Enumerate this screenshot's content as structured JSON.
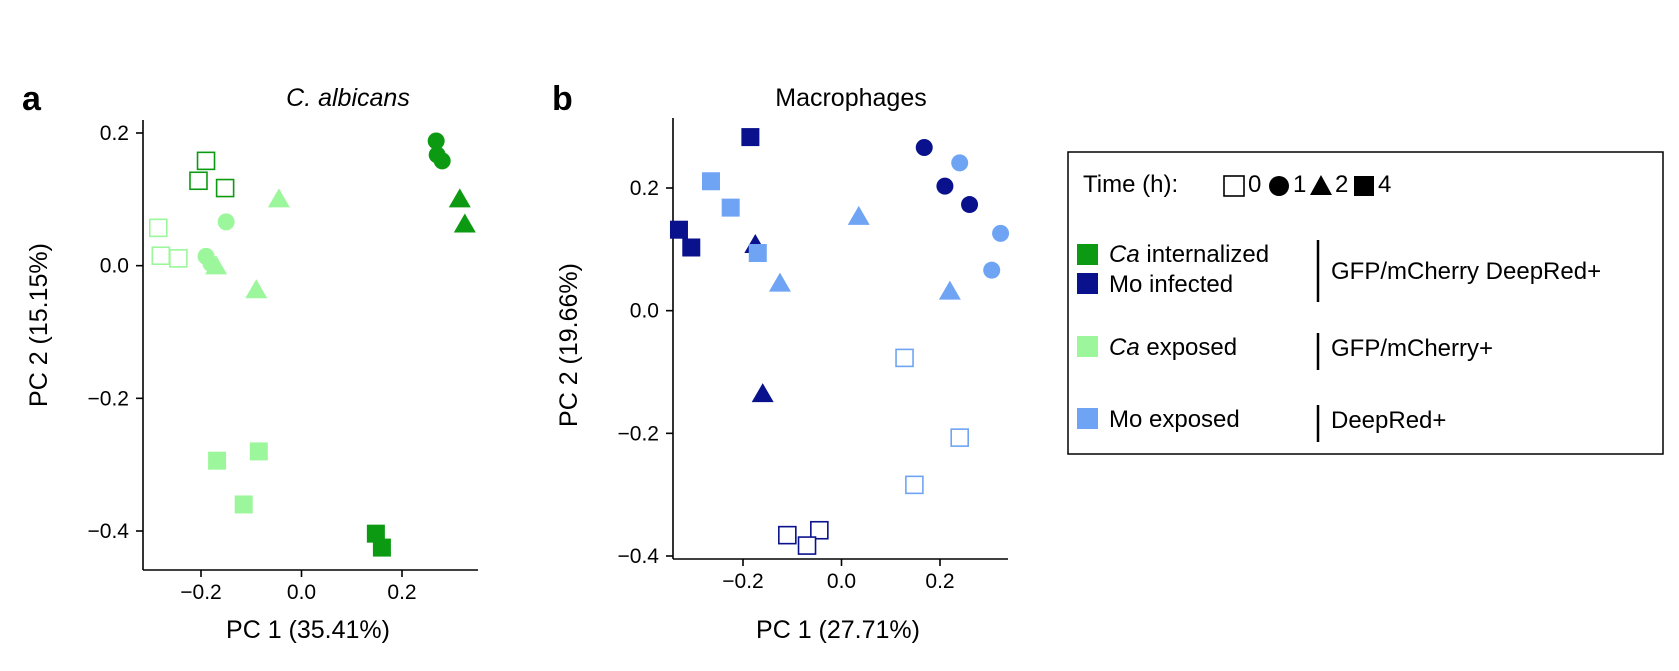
{
  "colors": {
    "ca_internalized": "#0c9a12",
    "mo_infected": "#0a118c",
    "ca_exposed": "#9cf79c",
    "mo_exposed": "#6fa4f5"
  },
  "chart_data": [
    {
      "type": "scatter",
      "panel": "a",
      "title": "C. albicans",
      "xlabel": "PC 1 (35.41%)",
      "ylabel": "PC 2 (15.15%)",
      "xlim": [
        -0.31,
        0.35
      ],
      "ylim": [
        -0.455,
        0.22
      ],
      "xticks": [
        -0.2,
        0.0,
        0.2
      ],
      "xtick_labels": [
        "−0.2",
        "0.0",
        "0.2"
      ],
      "yticks": [
        0.2,
        0.0,
        -0.2,
        -0.4
      ],
      "ytick_labels": [
        "0.2",
        "0.0",
        "−0.2",
        "−0.4"
      ],
      "grid": false,
      "points": [
        {
          "x": -0.19,
          "y": 0.158,
          "group": "ca_internalized",
          "time": 0
        },
        {
          "x": -0.205,
          "y": 0.128,
          "group": "ca_internalized",
          "time": 0
        },
        {
          "x": -0.152,
          "y": 0.117,
          "group": "ca_internalized",
          "time": 0
        },
        {
          "x": -0.285,
          "y": 0.057,
          "group": "ca_exposed",
          "time": 0
        },
        {
          "x": -0.28,
          "y": 0.015,
          "group": "ca_exposed",
          "time": 0
        },
        {
          "x": -0.245,
          "y": 0.011,
          "group": "ca_exposed",
          "time": 0
        },
        {
          "x": 0.268,
          "y": 0.188,
          "group": "ca_internalized",
          "time": 1
        },
        {
          "x": 0.27,
          "y": 0.167,
          "group": "ca_internalized",
          "time": 1
        },
        {
          "x": 0.28,
          "y": 0.158,
          "group": "ca_internalized",
          "time": 1
        },
        {
          "x": -0.15,
          "y": 0.066,
          "group": "ca_exposed",
          "time": 1
        },
        {
          "x": -0.19,
          "y": 0.014,
          "group": "ca_exposed",
          "time": 1
        },
        {
          "x": -0.18,
          "y": 0.003,
          "group": "ca_exposed",
          "time": 1
        },
        {
          "x": 0.315,
          "y": 0.1,
          "group": "ca_internalized",
          "time": 2
        },
        {
          "x": 0.325,
          "y": 0.062,
          "group": "ca_internalized",
          "time": 2
        },
        {
          "x": -0.045,
          "y": 0.1,
          "group": "ca_exposed",
          "time": 2
        },
        {
          "x": -0.17,
          "y": -0.001,
          "group": "ca_exposed",
          "time": 2
        },
        {
          "x": -0.09,
          "y": -0.037,
          "group": "ca_exposed",
          "time": 2
        },
        {
          "x": 0.148,
          "y": -0.404,
          "group": "ca_internalized",
          "time": 4
        },
        {
          "x": 0.16,
          "y": -0.425,
          "group": "ca_internalized",
          "time": 4
        },
        {
          "x": -0.168,
          "y": -0.294,
          "group": "ca_exposed",
          "time": 4
        },
        {
          "x": -0.085,
          "y": -0.28,
          "group": "ca_exposed",
          "time": 4
        },
        {
          "x": -0.115,
          "y": -0.36,
          "group": "ca_exposed",
          "time": 4
        }
      ]
    },
    {
      "type": "scatter",
      "panel": "b",
      "title": "Macrophages",
      "xlabel": "PC 1 (27.71%)",
      "ylabel": "PC 2 (19.66%)",
      "xlim": [
        -0.36,
        0.35
      ],
      "ylim": [
        -0.41,
        0.315
      ],
      "xticks": [
        -0.2,
        0.0,
        0.2
      ],
      "xtick_labels": [
        "−0.2",
        "0.0",
        "0.2"
      ],
      "yticks": [
        0.2,
        0.0,
        -0.2,
        -0.4
      ],
      "ytick_labels": [
        "0.2",
        "0.0",
        "−0.2",
        "−0.4"
      ],
      "grid": false,
      "points": [
        {
          "x": -0.11,
          "y": -0.366,
          "group": "mo_infected",
          "time": 0
        },
        {
          "x": -0.045,
          "y": -0.358,
          "group": "mo_infected",
          "time": 0
        },
        {
          "x": -0.07,
          "y": -0.383,
          "group": "mo_infected",
          "time": 0
        },
        {
          "x": 0.128,
          "y": -0.077,
          "group": "mo_exposed",
          "time": 0
        },
        {
          "x": 0.24,
          "y": -0.207,
          "group": "mo_exposed",
          "time": 0
        },
        {
          "x": 0.148,
          "y": -0.284,
          "group": "mo_exposed",
          "time": 0
        },
        {
          "x": 0.168,
          "y": 0.266,
          "group": "mo_infected",
          "time": 1
        },
        {
          "x": 0.21,
          "y": 0.203,
          "group": "mo_infected",
          "time": 1
        },
        {
          "x": 0.26,
          "y": 0.173,
          "group": "mo_infected",
          "time": 1
        },
        {
          "x": 0.24,
          "y": 0.241,
          "group": "mo_exposed",
          "time": 1
        },
        {
          "x": 0.323,
          "y": 0.126,
          "group": "mo_exposed",
          "time": 1
        },
        {
          "x": 0.305,
          "y": 0.066,
          "group": "mo_exposed",
          "time": 1
        },
        {
          "x": -0.175,
          "y": 0.107,
          "group": "mo_infected",
          "time": 2
        },
        {
          "x": -0.16,
          "y": -0.136,
          "group": "mo_infected",
          "time": 2
        },
        {
          "x": 0.035,
          "y": 0.153,
          "group": "mo_exposed",
          "time": 2
        },
        {
          "x": -0.125,
          "y": 0.044,
          "group": "mo_exposed",
          "time": 2
        },
        {
          "x": 0.22,
          "y": 0.031,
          "group": "mo_exposed",
          "time": 2
        },
        {
          "x": -0.185,
          "y": 0.283,
          "group": "mo_infected",
          "time": 4
        },
        {
          "x": -0.33,
          "y": 0.132,
          "group": "mo_infected",
          "time": 4
        },
        {
          "x": -0.305,
          "y": 0.103,
          "group": "mo_infected",
          "time": 4
        },
        {
          "x": -0.265,
          "y": 0.211,
          "group": "mo_exposed",
          "time": 4
        },
        {
          "x": -0.225,
          "y": 0.168,
          "group": "mo_exposed",
          "time": 4
        },
        {
          "x": -0.17,
          "y": 0.094,
          "group": "mo_exposed",
          "time": 4
        }
      ]
    }
  ],
  "legend": {
    "time_label": "Time (h):",
    "time_entries": [
      {
        "shape": "open-square",
        "label": "0"
      },
      {
        "shape": "circle",
        "label": "1"
      },
      {
        "shape": "triangle",
        "label": "2"
      },
      {
        "shape": "square",
        "label": "4"
      }
    ],
    "group1_row1_italic": "Ca",
    "group1_row1_text": " internalized",
    "group1_row2_text": "Mo infected",
    "group1_marker": "GFP/mCherry DeepRed+",
    "group2_italic": "Ca",
    "group2_text": " exposed",
    "group2_marker": "GFP/mCherry+",
    "group3_text": "Mo exposed",
    "group3_marker": "DeepRed+"
  }
}
